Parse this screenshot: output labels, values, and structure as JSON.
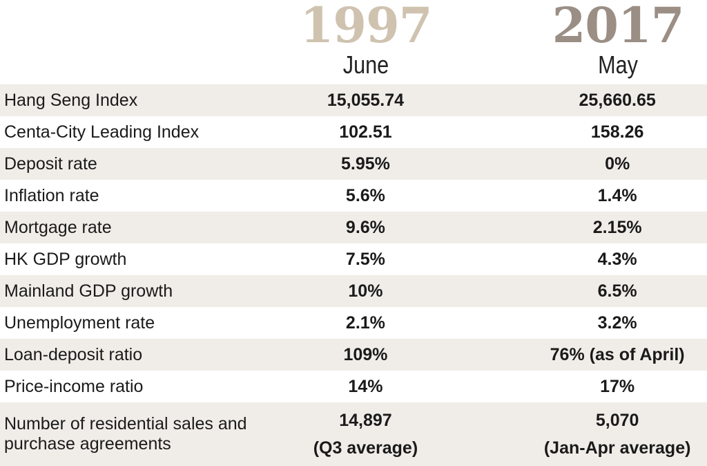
{
  "header": {
    "col1": {
      "year": "1997",
      "month": "June"
    },
    "col2": {
      "year": "2017",
      "month": "May"
    }
  },
  "colors": {
    "year_1997": "#cfc3b0",
    "year_2017": "#9b8f85",
    "row_shade": "#f0ede8"
  },
  "rows": [
    {
      "label": "Hang Seng Index",
      "v1997": "15,055.74",
      "v2017": "25,660.65"
    },
    {
      "label": "Centa-City Leading Index",
      "v1997": "102.51",
      "v2017": "158.26"
    },
    {
      "label": "Deposit rate",
      "v1997": "5.95%",
      "v2017": "0%"
    },
    {
      "label": "Inflation rate",
      "v1997": "5.6%",
      "v2017": "1.4%"
    },
    {
      "label": "Mortgage rate",
      "v1997": "9.6%",
      "v2017": "2.15%"
    },
    {
      "label": "HK GDP growth",
      "v1997": "7.5%",
      "v2017": "4.3%"
    },
    {
      "label": "Mainland GDP growth",
      "v1997": "10%",
      "v2017": "6.5%"
    },
    {
      "label": "Unemployment rate",
      "v1997": "2.1%",
      "v2017": "3.2%"
    },
    {
      "label": "Loan-deposit ratio",
      "v1997": "109%",
      "v2017": "76% (as of April)"
    },
    {
      "label": "Price-income ratio",
      "v1997": "14%",
      "v2017": "17%"
    }
  ],
  "last_row": {
    "label_line1": "Number of residential sales and",
    "label_line2": "purchase agreements",
    "v1997_line1": "14,897",
    "v1997_line2": "(Q3 average)",
    "v2017_line1": "5,070",
    "v2017_line2": "(Jan-Apr average)"
  }
}
